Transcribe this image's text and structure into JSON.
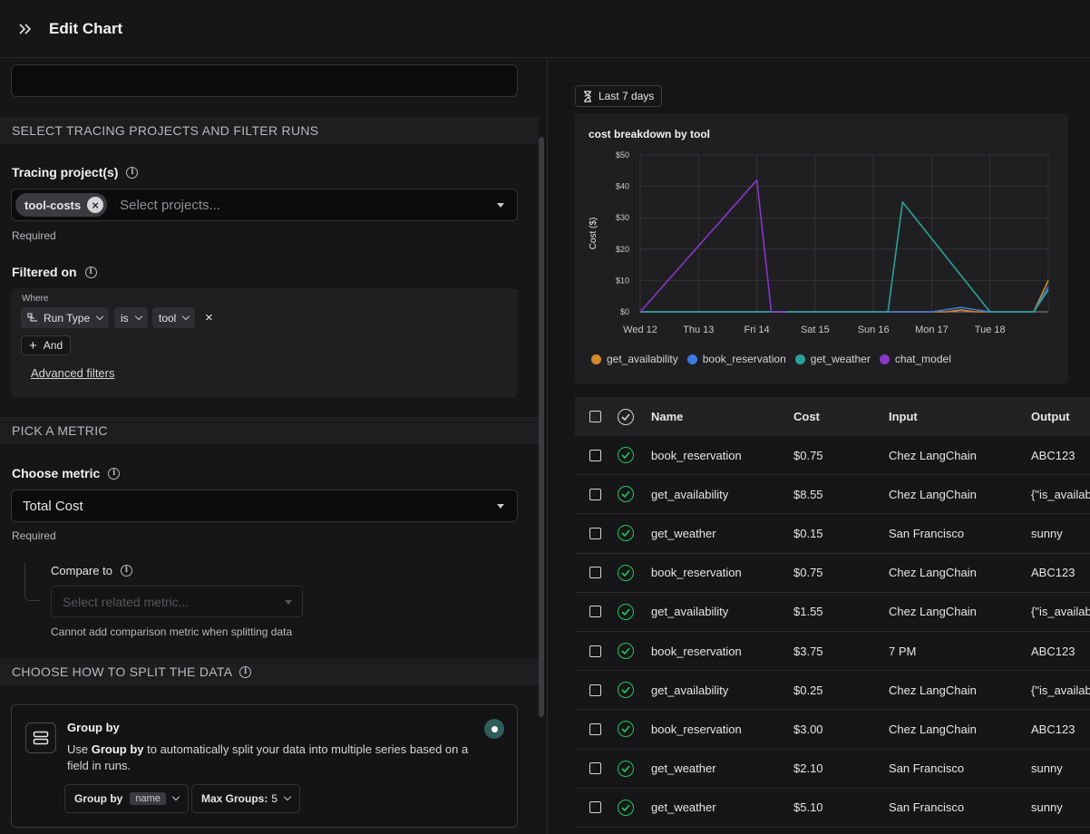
{
  "header": {
    "title": "Edit Chart"
  },
  "colors": {
    "accent": "#2f5d5a",
    "success": "#22c55e",
    "get_availability": "#d4892a",
    "book_reservation": "#3b7ae0",
    "get_weather": "#2aa198",
    "chat_model": "#8a35c9"
  },
  "form": {
    "chart_name": {
      "value": "",
      "placeholder": ""
    },
    "section_tracing": "SELECT TRACING PROJECTS AND FILTER RUNS",
    "tracing_label": "Tracing project(s)",
    "tracing_chip": "tool-costs",
    "tracing_placeholder": "Select projects...",
    "required": "Required",
    "filtered_on_label": "Filtered on",
    "filter": {
      "where": "Where",
      "field": "Run Type",
      "operator": "is",
      "value": "tool",
      "and_label": "And",
      "advanced": "Advanced filters"
    },
    "section_metric": "PICK A METRIC",
    "choose_metric_label": "Choose metric",
    "metric_value": "Total Cost",
    "compare_label": "Compare to",
    "compare_placeholder": "Select related metric...",
    "compare_help": "Cannot add comparison metric when splitting data",
    "section_split": "CHOOSE HOW TO SPLIT THE DATA",
    "group_by": {
      "title": "Group by",
      "desc_pre": "Use ",
      "desc_bold": "Group by",
      "desc_post": " to automatically split your data into multiple series based on a field in runs.",
      "select_label": "Group by",
      "select_tag": "name",
      "max_label": "Max Groups:",
      "max_value": "5"
    }
  },
  "preview": {
    "time_range": "Last 7 days",
    "table_headers": {
      "name": "Name",
      "cost": "Cost",
      "input": "Input",
      "output": "Output"
    },
    "rows": [
      {
        "name": "book_reservation",
        "cost": "$0.75",
        "input": "Chez LangChain",
        "output": "ABC123"
      },
      {
        "name": "get_availability",
        "cost": "$8.55",
        "input": "Chez LangChain",
        "output": "{\"is_available\""
      },
      {
        "name": "get_weather",
        "cost": "$0.15",
        "input": "San Francisco",
        "output": "sunny"
      },
      {
        "name": "book_reservation",
        "cost": "$0.75",
        "input": "Chez LangChain",
        "output": "ABC123"
      },
      {
        "name": "get_availability",
        "cost": "$1.55",
        "input": "Chez LangChain",
        "output": "{\"is_available\""
      },
      {
        "name": "book_reservation",
        "cost": "$3.75",
        "input": "7 PM",
        "output": "ABC123"
      },
      {
        "name": "get_availability",
        "cost": "$0.25",
        "input": "Chez LangChain",
        "output": "{\"is_available\""
      },
      {
        "name": "book_reservation",
        "cost": "$3.00",
        "input": "Chez LangChain",
        "output": "ABC123"
      },
      {
        "name": "get_weather",
        "cost": "$2.10",
        "input": "San Francisco",
        "output": "sunny"
      },
      {
        "name": "get_weather",
        "cost": "$5.10",
        "input": "San Francisco",
        "output": "sunny"
      }
    ]
  },
  "chart_data": {
    "type": "line",
    "title": "cost breakdown by tool",
    "ylabel": "Cost ($)",
    "xlabel": "",
    "ylim": [
      0,
      50
    ],
    "y_ticks": [
      "$0",
      "$10",
      "$20",
      "$30",
      "$40",
      "$50"
    ],
    "x_ticks": [
      "Wed 12",
      "Thu 13",
      "Fri 14",
      "Sat 15",
      "Sun 16",
      "Mon 17",
      "Tue 18"
    ],
    "x_domain": [
      "Wed 12 00:00",
      "Wed 19 00:00"
    ],
    "grid": true,
    "legend_position": "bottom",
    "series": [
      {
        "name": "get_availability",
        "points": [
          [
            "Wed 12 00:00",
            0
          ],
          [
            "Mon 17 06:00",
            0
          ],
          [
            "Mon 17 12:00",
            0.6
          ],
          [
            "Mon 17 18:00",
            0
          ],
          [
            "Tue 18 18:00",
            0
          ],
          [
            "Wed 19 00:00",
            10
          ]
        ]
      },
      {
        "name": "book_reservation",
        "points": [
          [
            "Wed 12 00:00",
            0
          ],
          [
            "Mon 17 00:00",
            0
          ],
          [
            "Mon 17 12:00",
            1.4
          ],
          [
            "Tue 18 00:00",
            0
          ],
          [
            "Tue 18 18:00",
            0
          ],
          [
            "Wed 19 00:00",
            8
          ]
        ]
      },
      {
        "name": "get_weather",
        "points": [
          [
            "Wed 12 00:00",
            0
          ],
          [
            "Sun 16 06:00",
            0
          ],
          [
            "Sun 16 12:00",
            35
          ],
          [
            "Tue 18 00:00",
            0
          ],
          [
            "Tue 18 18:00",
            0
          ],
          [
            "Wed 19 00:00",
            7
          ]
        ]
      },
      {
        "name": "chat_model",
        "points": [
          [
            "Wed 12 00:00",
            0
          ],
          [
            "Fri 14 00:00",
            42
          ],
          [
            "Fri 14 06:00",
            0
          ],
          [
            "Fri 14 12:00",
            0
          ]
        ]
      }
    ]
  }
}
